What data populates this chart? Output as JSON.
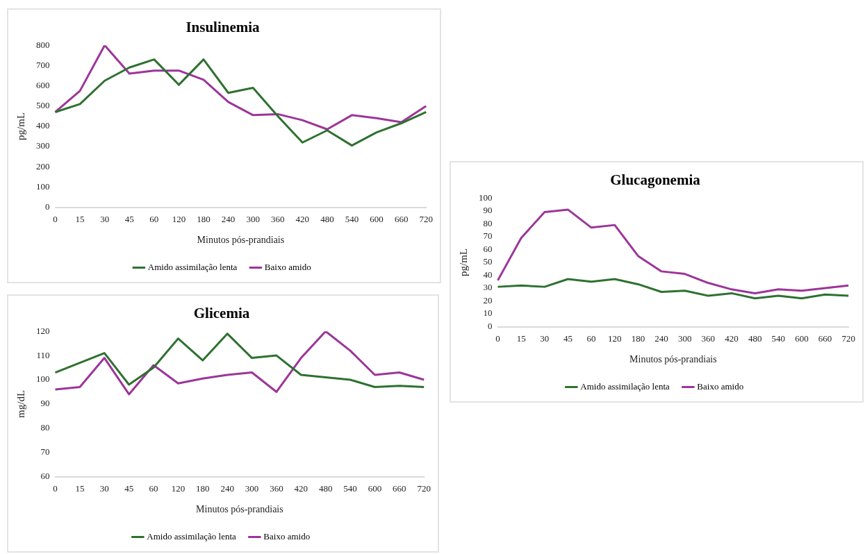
{
  "chart_data": [
    {
      "type": "line",
      "title": "Insulinemia",
      "xlabel": "Minutos pós-prandiais",
      "ylabel": "pg/mL",
      "categories": [
        "0",
        "15",
        "30",
        "45",
        "60",
        "120",
        "180",
        "240",
        "300",
        "360",
        "420",
        "480",
        "540",
        "600",
        "660",
        "720"
      ],
      "ylim": [
        0,
        800
      ],
      "yticks": [
        0,
        100,
        200,
        300,
        400,
        500,
        600,
        700,
        800
      ],
      "grid": false,
      "legend": "bottom",
      "marker": "none",
      "series": [
        {
          "name": "Amido assimilação lenta",
          "color": "#2e7130",
          "values": [
            470,
            510,
            625,
            690,
            730,
            605,
            730,
            565,
            590,
            450,
            320,
            380,
            305,
            370,
            415,
            470
          ]
        },
        {
          "name": "Baixo amido",
          "color": "#9c3599",
          "values": [
            470,
            575,
            800,
            660,
            675,
            675,
            630,
            520,
            455,
            460,
            430,
            385,
            455,
            440,
            420,
            500
          ]
        }
      ]
    },
    {
      "type": "line",
      "title": "Glicemia",
      "xlabel": "Minutos pós-prandiais",
      "ylabel": "mg/dL",
      "categories": [
        "0",
        "15",
        "30",
        "45",
        "60",
        "120",
        "180",
        "240",
        "300",
        "360",
        "420",
        "480",
        "540",
        "600",
        "660",
        "720"
      ],
      "ylim": [
        60,
        120
      ],
      "yticks": [
        60,
        70,
        80,
        90,
        100,
        110,
        120
      ],
      "grid": false,
      "legend": "bottom",
      "marker": "none",
      "series": [
        {
          "name": "Amido assimilação lenta",
          "color": "#2e7130",
          "values": [
            103,
            107,
            111,
            98,
            105,
            117,
            108,
            119,
            109,
            110,
            102,
            101,
            100,
            97,
            97.5,
            97
          ]
        },
        {
          "name": "Baixo amido",
          "color": "#9c3599",
          "values": [
            96,
            97,
            109,
            94,
            106,
            98.5,
            100.5,
            102,
            103,
            95,
            109,
            120,
            112,
            102,
            103,
            100
          ]
        }
      ]
    },
    {
      "type": "line",
      "title": "Glucagonemia",
      "xlabel": "Minutos pós-prandiais",
      "ylabel": "pg/mL",
      "categories": [
        "0",
        "15",
        "30",
        "45",
        "60",
        "120",
        "180",
        "240",
        "300",
        "360",
        "420",
        "480",
        "540",
        "600",
        "660",
        "720"
      ],
      "ylim": [
        0,
        100
      ],
      "yticks": [
        0,
        10,
        20,
        30,
        40,
        50,
        60,
        70,
        80,
        90,
        100
      ],
      "grid": false,
      "legend": "bottom",
      "marker": "none",
      "series": [
        {
          "name": "Amido assimilação lenta",
          "color": "#2e7130",
          "values": [
            31,
            32,
            31,
            37,
            35,
            37,
            33,
            27,
            28,
            24,
            26,
            22,
            24,
            22,
            25,
            24
          ]
        },
        {
          "name": "Baixo amido",
          "color": "#9c3599",
          "values": [
            36,
            69,
            89,
            91,
            77,
            79,
            55,
            43,
            41,
            34,
            29,
            26,
            29,
            28,
            30,
            32
          ]
        }
      ]
    }
  ]
}
